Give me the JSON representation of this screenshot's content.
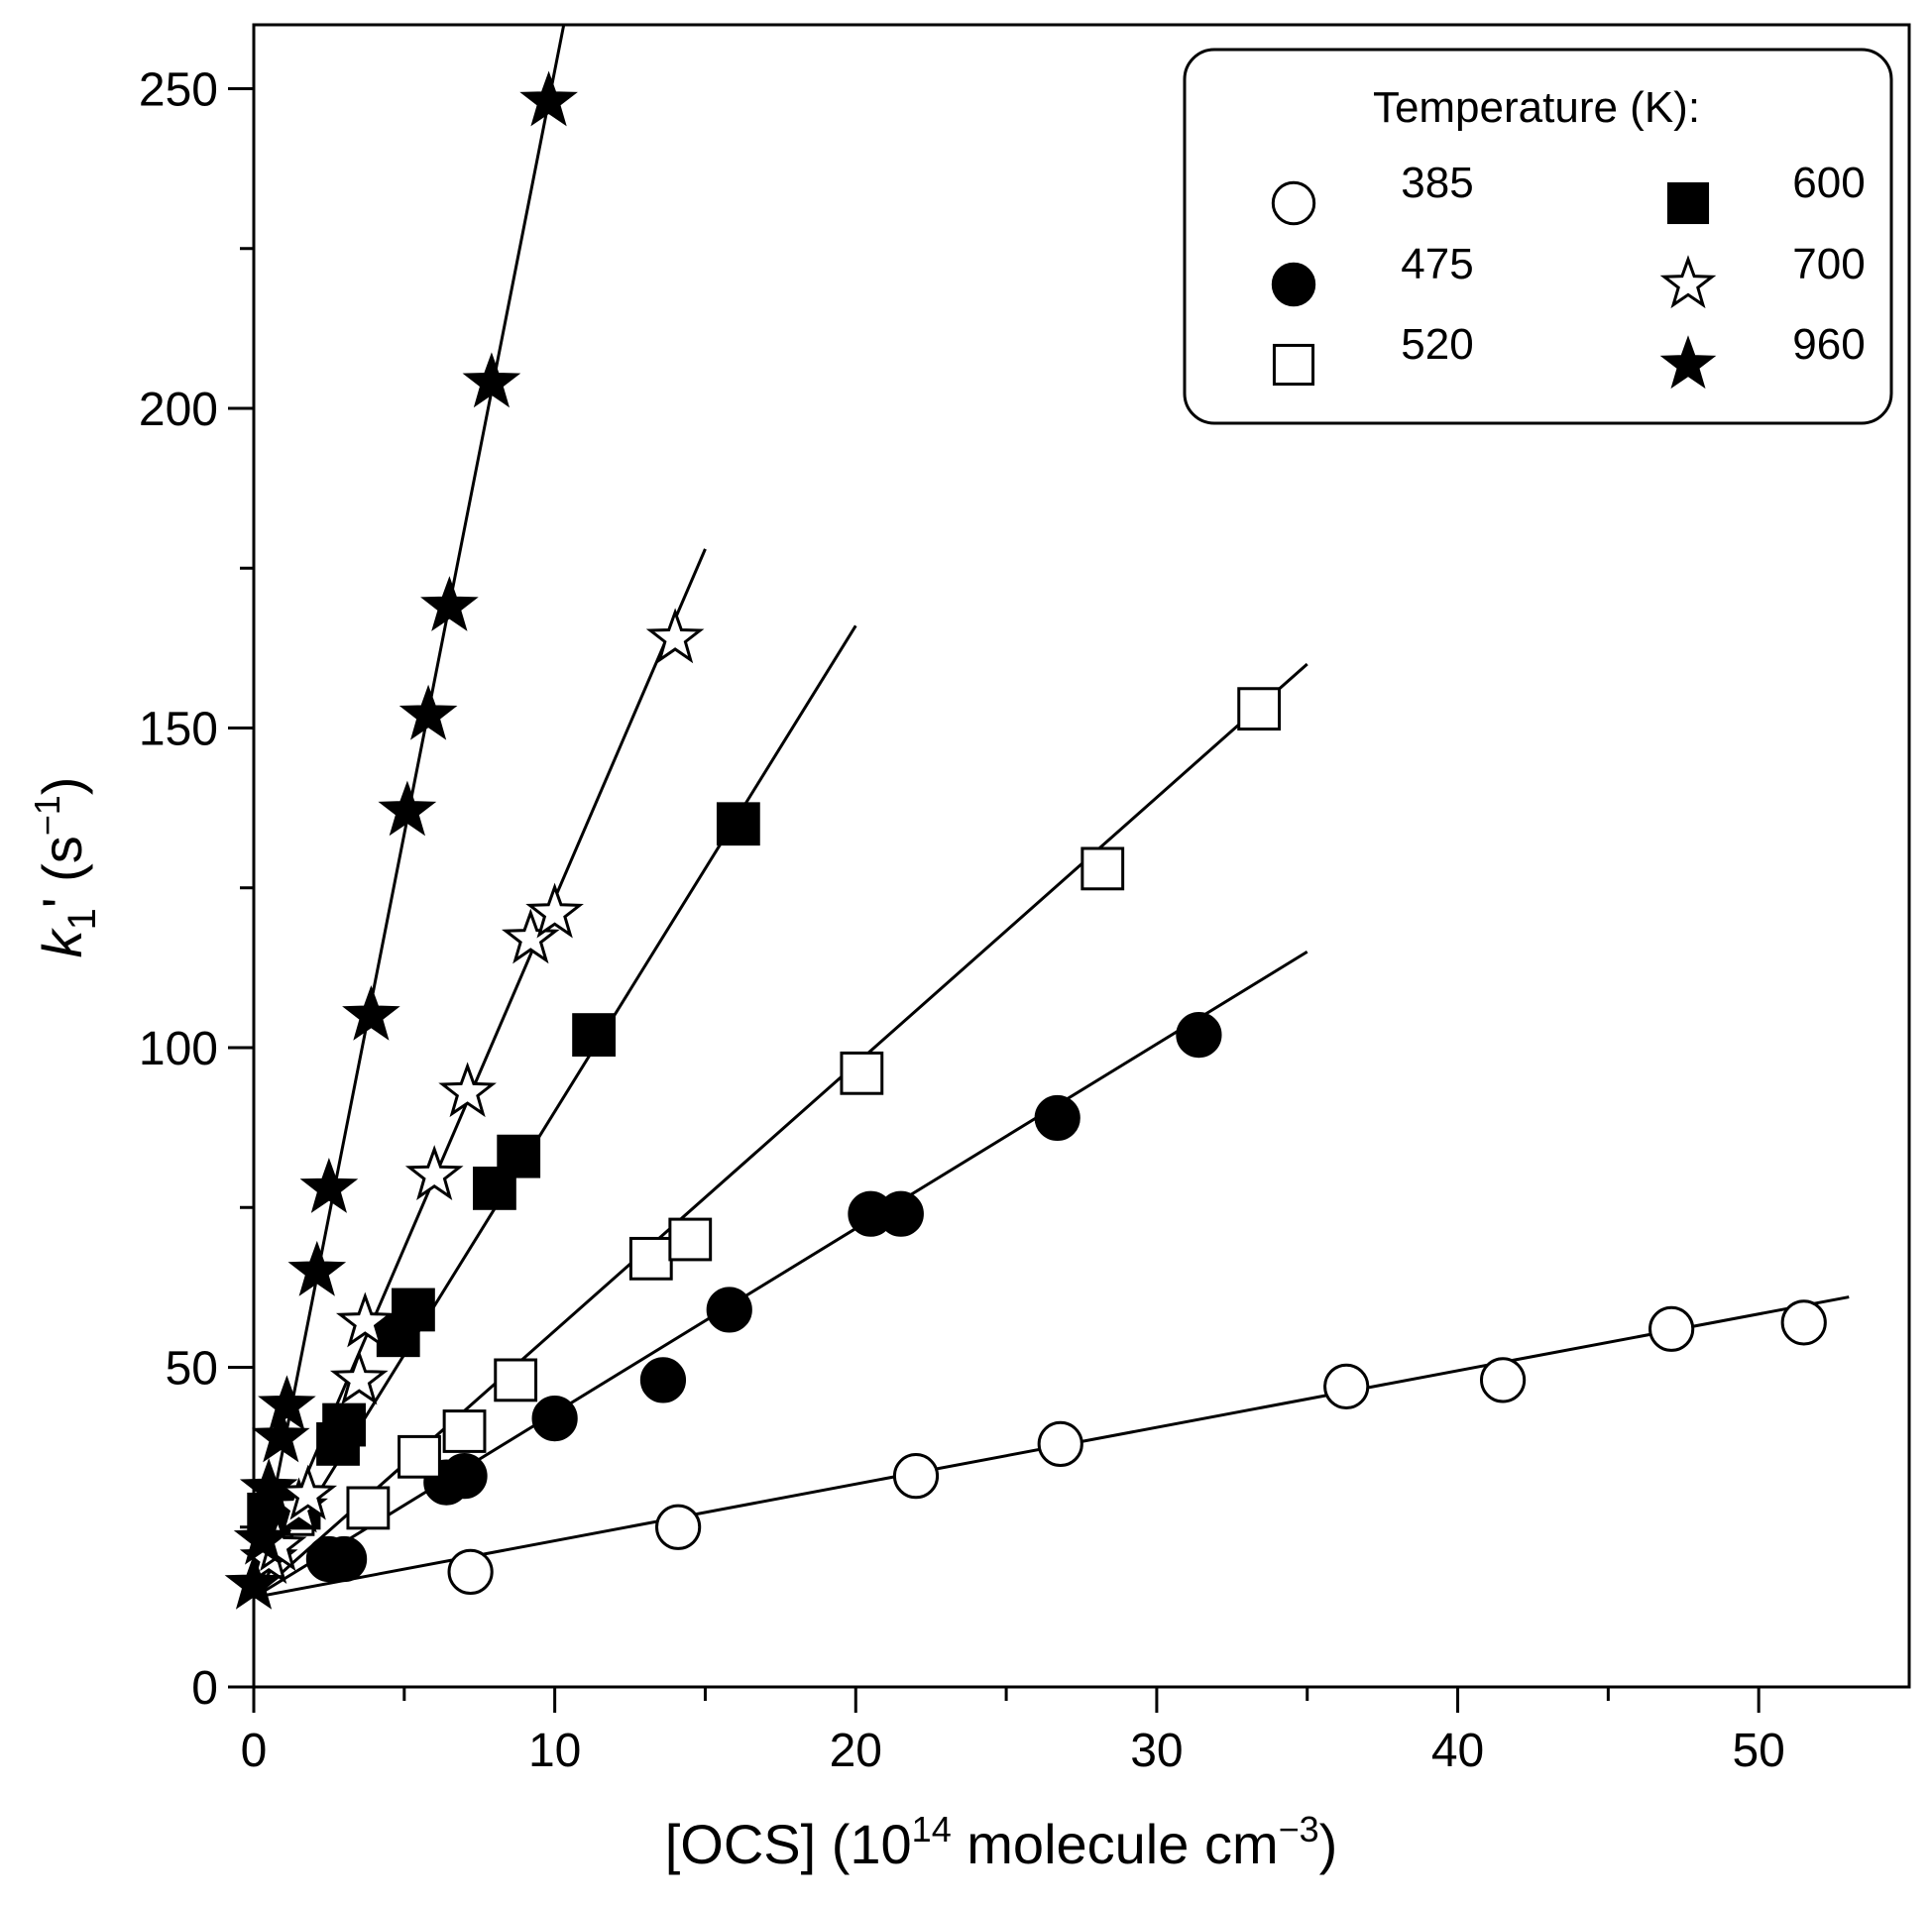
{
  "chart_data": {
    "type": "scatter",
    "xlabel": "[OCS] (10",
    "xlabel_sup": "14",
    "xlabel_mid": " molecule cm",
    "xlabel_sup2": "−3",
    "xlabel_end": ")",
    "ylabel_k": "k",
    "ylabel_sub": "1",
    "ylabel_rest": "' (s",
    "ylabel_sup": "−1",
    "ylabel_end": ")",
    "xlim": [
      0,
      55
    ],
    "ylim": [
      0,
      260
    ],
    "x_ticks": [
      0,
      10,
      20,
      30,
      40,
      50
    ],
    "x_minor_ticks": [
      5,
      15,
      25,
      35,
      45
    ],
    "y_ticks": [
      0,
      50,
      100,
      150,
      200,
      250
    ],
    "y_minor_ticks": [
      25,
      75,
      125,
      175,
      225
    ],
    "grid": false,
    "legend": {
      "title": "Temperature (K):",
      "placement": "top-right"
    },
    "series": [
      {
        "name": "385",
        "marker": "circle",
        "filled": false,
        "x": [
          7.2,
          14.1,
          22.0,
          26.8,
          36.3,
          41.5,
          47.1,
          51.5
        ],
        "y": [
          18,
          25,
          33,
          38,
          47,
          48,
          56,
          57
        ],
        "fit": {
          "x": [
            0,
            53
          ],
          "y": [
            14,
            61
          ]
        }
      },
      {
        "name": "475",
        "marker": "circle",
        "filled": true,
        "x": [
          2.5,
          3.0,
          6.4,
          7.0,
          10.0,
          13.6,
          15.8,
          20.5,
          21.5,
          26.7,
          31.4
        ],
        "y": [
          20,
          20,
          32,
          33,
          42,
          48,
          59,
          74,
          74,
          89,
          102
        ],
        "fit": {
          "x": [
            0,
            35
          ],
          "y": [
            14,
            115
          ]
        }
      },
      {
        "name": "520",
        "marker": "square",
        "filled": false,
        "x": [
          1.3,
          3.8,
          5.5,
          7.0,
          8.7,
          13.2,
          14.5,
          20.2,
          28.2,
          33.4
        ],
        "y": [
          27,
          28,
          36,
          40,
          48,
          67,
          70,
          96,
          128,
          153
        ],
        "fit": {
          "x": [
            0,
            35
          ],
          "y": [
            14,
            160
          ]
        }
      },
      {
        "name": "600",
        "marker": "square",
        "filled": true,
        "x": [
          0.5,
          1.5,
          2.8,
          3.0,
          4.8,
          5.3,
          8.0,
          8.8,
          11.3,
          16.1
        ],
        "y": [
          27,
          28,
          38,
          41,
          55,
          59,
          78,
          83,
          102,
          135
        ],
        "fit": {
          "x": [
            0,
            20
          ],
          "y": [
            14,
            166
          ]
        }
      },
      {
        "name": "700",
        "marker": "star",
        "filled": false,
        "x": [
          0.5,
          0.8,
          1.5,
          1.8,
          3.5,
          3.7,
          6.0,
          7.1,
          9.2,
          10.0,
          14.0
        ],
        "y": [
          20,
          22,
          28,
          30,
          48,
          57,
          80,
          93,
          117,
          121,
          164
        ],
        "fit": {
          "x": [
            0,
            15
          ],
          "y": [
            14,
            178
          ]
        }
      },
      {
        "name": "960",
        "marker": "star",
        "filled": true,
        "x": [
          0.0,
          0.3,
          0.5,
          0.9,
          1.1,
          2.1,
          2.5,
          3.9,
          5.1,
          5.8,
          6.5,
          7.9,
          9.8
        ],
        "y": [
          16,
          23,
          31,
          39,
          44,
          65,
          78,
          105,
          137,
          152,
          169,
          204,
          248
        ],
        "fit": {
          "x": [
            0,
            10.3
          ],
          "y": [
            14,
            260
          ]
        }
      }
    ]
  }
}
